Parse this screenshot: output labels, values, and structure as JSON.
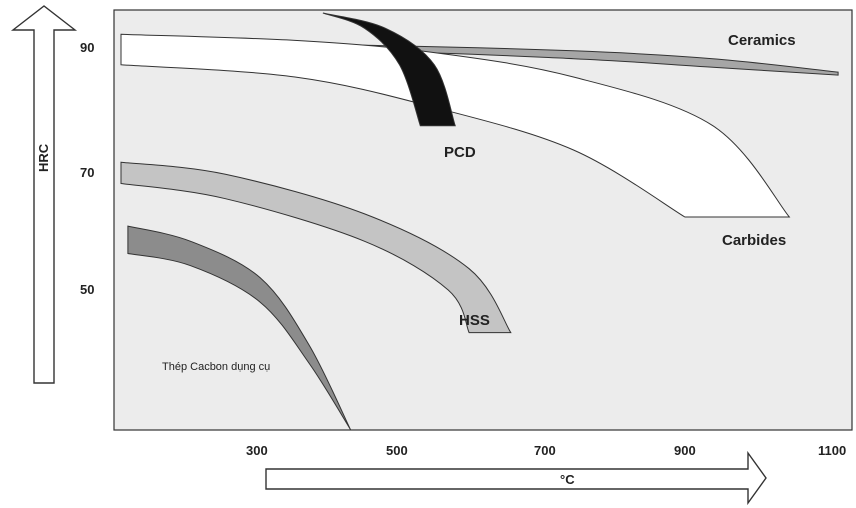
{
  "chart_data": {
    "type": "area",
    "ylabel": "HRC",
    "xlabel": "°C",
    "y_ticks": [
      90,
      70,
      50
    ],
    "x_ticks": [
      300,
      500,
      700,
      900,
      1100
    ],
    "y_tick_labels": [
      "90",
      "70",
      "50"
    ],
    "x_tick_labels": [
      "300",
      "500",
      "700",
      "900",
      "1100"
    ],
    "xlim": [
      40,
      1100
    ],
    "ylim": [
      28,
      97
    ],
    "grid": false,
    "series": [
      {
        "name": "Ceramics",
        "color": "#a6a6a6",
        "upper": [
          [
            50,
            91.5
          ],
          [
            400,
            91.2
          ],
          [
            700,
            90.3
          ],
          [
            900,
            89.0
          ],
          [
            1080,
            86.8
          ]
        ],
        "lower": [
          [
            50,
            89.8
          ],
          [
            400,
            90.2
          ],
          [
            700,
            89.0
          ],
          [
            900,
            87.6
          ],
          [
            1080,
            86.3
          ]
        ]
      },
      {
        "name": "Carbides",
        "color": "#ffffff",
        "upper": [
          [
            50,
            93
          ],
          [
            300,
            92
          ],
          [
            500,
            90
          ],
          [
            700,
            86
          ],
          [
            900,
            78
          ],
          [
            1010,
            63
          ]
        ],
        "lower": [
          [
            50,
            88
          ],
          [
            300,
            86
          ],
          [
            500,
            81
          ],
          [
            700,
            74
          ],
          [
            860,
            63
          ]
        ]
      },
      {
        "name": "PCD",
        "color": "#111111",
        "upper": [
          [
            340,
            96.5
          ],
          [
            430,
            94
          ],
          [
            500,
            88
          ],
          [
            530,
            78
          ]
        ],
        "lower": [
          [
            340,
            96.5
          ],
          [
            400,
            94
          ],
          [
            450,
            88
          ],
          [
            480,
            78
          ]
        ]
      },
      {
        "name": "HSS",
        "color": "#c4c4c4",
        "upper": [
          [
            50,
            72
          ],
          [
            200,
            70
          ],
          [
            400,
            63.5
          ],
          [
            550,
            54.5
          ],
          [
            610,
            44
          ]
        ],
        "lower": [
          [
            50,
            68.5
          ],
          [
            200,
            66
          ],
          [
            400,
            59
          ],
          [
            520,
            51
          ],
          [
            550,
            44
          ]
        ]
      },
      {
        "name": "Thép Cacbon dụng cụ",
        "color": "#8c8c8c",
        "upper": [
          [
            60,
            61.5
          ],
          [
            150,
            59
          ],
          [
            250,
            53
          ],
          [
            320,
            42
          ],
          [
            380,
            28
          ]
        ],
        "lower": [
          [
            60,
            57
          ],
          [
            150,
            55
          ],
          [
            250,
            49
          ],
          [
            320,
            39
          ],
          [
            380,
            28
          ]
        ]
      }
    ]
  },
  "labels": {
    "ceramics": "Ceramics",
    "pcd": "PCD",
    "carbides": "Carbides",
    "hss": "HSS",
    "steel": "Thép Cacbon dụng cụ"
  },
  "axes": {
    "y_label": "HRC",
    "x_label": "°C"
  }
}
